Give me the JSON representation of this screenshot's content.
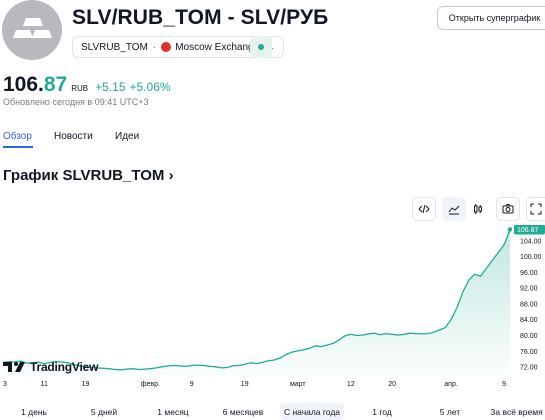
{
  "header": {
    "title": "SLV/RUB_TOM - SLV/РУБ",
    "symbol": "SLVRUB_TOM",
    "separator": "·",
    "exchange": "Moscow Exchange",
    "supergraph_button": "Открыть суперграфик",
    "market_status_color": "#22ab94"
  },
  "quote": {
    "price_int": "106.",
    "price_dec": "87",
    "currency": "RUB",
    "change": "+5.15",
    "change_pct": "+5.06%",
    "updated": "Обновлено сегодня в 09:41 UTC+3"
  },
  "tabs": [
    {
      "label": "Обзор",
      "active": true
    },
    {
      "label": "Новости",
      "active": false
    },
    {
      "label": "Идеи",
      "active": false
    }
  ],
  "chart_heading": "График SLVRUB_TOM",
  "toolbar_icons": [
    "embed-icon",
    "area-chart-icon",
    "candles-icon",
    "camera-icon",
    "fullscreen-icon"
  ],
  "branding": "TradingView",
  "chart_data": {
    "type": "area",
    "color": "#22ab94",
    "last_value_label": "106.87",
    "ylim": [
      70,
      108
    ],
    "y_ticks": [
      "104.00",
      "100.00",
      "96.00",
      "92.00",
      "88.00",
      "84.00",
      "80.00",
      "76.00",
      "72.00"
    ],
    "y_tick_values": [
      104,
      100,
      96,
      92,
      88,
      84,
      80,
      76,
      72
    ],
    "x_ticks": [
      "3",
      "11",
      "19",
      "февр.",
      "9",
      "19",
      "март",
      "12",
      "20",
      "апр.",
      "9"
    ],
    "x_tick_index": [
      0,
      7,
      14,
      25,
      32,
      41,
      50,
      59,
      66,
      76,
      85
    ],
    "values": [
      73.2,
      73.4,
      73.3,
      73.5,
      73.0,
      73.1,
      73.3,
      72.9,
      73.2,
      73.4,
      73.3,
      73.1,
      72.6,
      72.3,
      72.1,
      71.9,
      71.8,
      71.7,
      71.6,
      71.4,
      71.3,
      71.5,
      71.6,
      71.4,
      71.5,
      71.6,
      71.8,
      72.1,
      72.3,
      72.4,
      72.3,
      72.2,
      72.4,
      72.5,
      72.4,
      72.2,
      72.1,
      71.8,
      71.9,
      72.3,
      72.4,
      72.7,
      73.1,
      72.9,
      73.2,
      73.6,
      73.8,
      74.3,
      75.2,
      75.8,
      76.1,
      76.4,
      76.8,
      77.4,
      77.2,
      77.6,
      78.0,
      78.9,
      79.9,
      80.3,
      80.0,
      80.1,
      80.4,
      80.6,
      80.2,
      80.5,
      80.3,
      80.1,
      80.3,
      80.6,
      80.5,
      80.4,
      80.5,
      80.8,
      81.4,
      82.0,
      84.0,
      87.0,
      91.0,
      94.0,
      95.5,
      95.0,
      97.0,
      99.0,
      101.0,
      103.0,
      106.87
    ]
  },
  "ranges": [
    {
      "label": "1 день",
      "active": false
    },
    {
      "label": "5 дней",
      "active": false
    },
    {
      "label": "1 месяц",
      "active": false
    },
    {
      "label": "6 месяцев",
      "active": false
    },
    {
      "label": "С начала года",
      "active": true
    },
    {
      "label": "1 год",
      "active": false
    },
    {
      "label": "5 лет",
      "active": false
    },
    {
      "label": "За всё время",
      "active": false
    }
  ]
}
